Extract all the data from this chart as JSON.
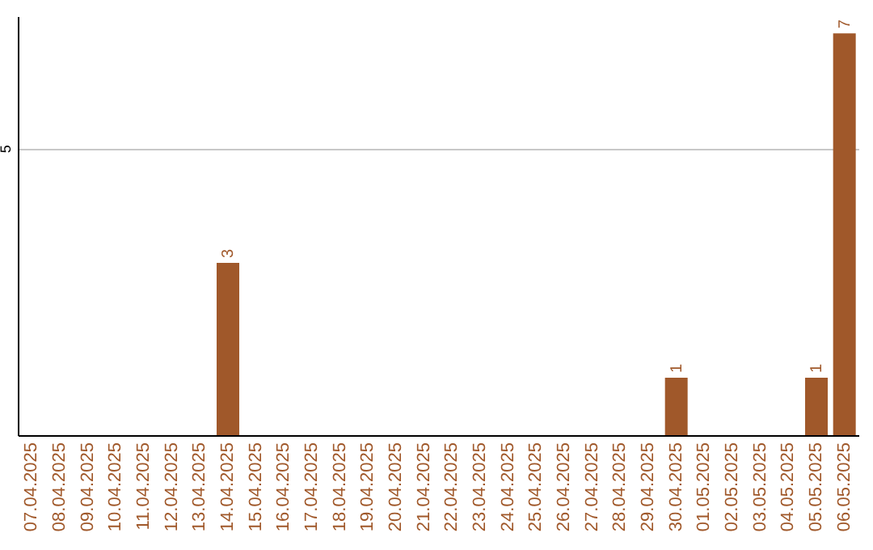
{
  "chart_data": {
    "type": "bar",
    "categories": [
      "07.04.2025",
      "08.04.2025",
      "09.04.2025",
      "10.04.2025",
      "11.04.2025",
      "12.04.2025",
      "13.04.2025",
      "14.04.2025",
      "15.04.2025",
      "16.04.2025",
      "17.04.2025",
      "18.04.2025",
      "19.04.2025",
      "20.04.2025",
      "21.04.2025",
      "22.04.2025",
      "23.04.2025",
      "24.04.2025",
      "25.04.2025",
      "26.04.2025",
      "27.04.2025",
      "28.04.2025",
      "29.04.2025",
      "30.04.2025",
      "01.05.2025",
      "02.05.2025",
      "03.05.2025",
      "04.05.2025",
      "05.05.2025",
      "06.05.2025"
    ],
    "values": [
      0,
      0,
      0,
      0,
      0,
      0,
      0,
      3,
      0,
      0,
      0,
      0,
      0,
      0,
      0,
      0,
      0,
      0,
      0,
      0,
      0,
      0,
      0,
      1,
      0,
      0,
      0,
      0,
      1,
      7
    ],
    "value_labels": [
      null,
      null,
      null,
      null,
      null,
      null,
      null,
      "3",
      null,
      null,
      null,
      null,
      null,
      null,
      null,
      null,
      null,
      null,
      null,
      null,
      null,
      null,
      null,
      "1",
      null,
      null,
      null,
      null,
      "1",
      "7"
    ],
    "color": "#a0582a",
    "ylim": [
      0,
      7.3
    ],
    "yticks": [
      5
    ],
    "grid": "y"
  }
}
